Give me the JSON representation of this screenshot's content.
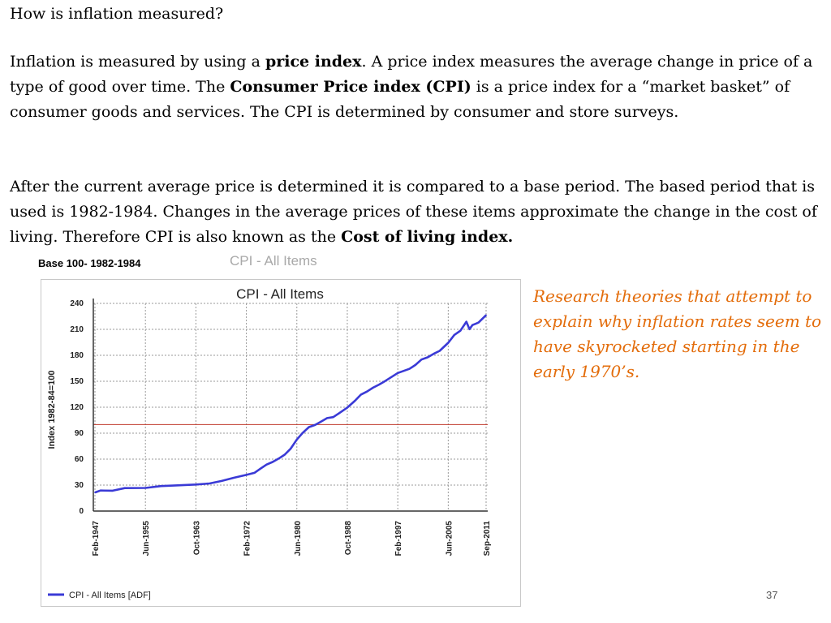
{
  "slide": {
    "title": "How is inflation measured?",
    "p1": {
      "t1": "Inflation is measured by using a ",
      "b1": "price index",
      "t2": ".  A price index measures the average change in price of a type of good over time.  The ",
      "b2": "Consumer Price index (CPI)",
      "t3": " is a price index for a “market basket” of consumer goods and services.  The CPI is determined by consumer and store surveys."
    },
    "p2": {
      "t1": "After the current average price is determined it is compared to a base period.  The based period that is used is 1982-1984.  Changes in the average prices of these items approximate the change in the cost of living.  Therefore  CPI is also known as the ",
      "b1": "Cost of living index."
    },
    "note": "Research theories that attempt to explain why inflation rates seem to  have skyrocketed starting in the early 1970’s.",
    "base_label": "Base 100- 1982-1984",
    "ghost_title": "CPI - All Items",
    "page_number": "37"
  },
  "colors": {
    "line": "#3a3ad6",
    "reference": "#c0392b",
    "note": "#e36c0a"
  },
  "chart_data": {
    "type": "line",
    "title": "CPI - All Items",
    "ylabel": "Index 1982-84=100",
    "xlabel": "",
    "ylim": [
      0,
      240
    ],
    "yticks": [
      0,
      30,
      60,
      90,
      120,
      150,
      180,
      210,
      240
    ],
    "xticks": [
      "Feb-1947",
      "Jun-1955",
      "Oct-1963",
      "Feb-1972",
      "Jun-1980",
      "Oct-1988",
      "Feb-1997",
      "Jun-2005",
      "Sep-2011"
    ],
    "grid": true,
    "legend": "bottom-left",
    "reference_line": 100,
    "series": [
      {
        "name": "CPI - All Items [ADF]",
        "x": [
          "1947-02",
          "1948-01",
          "1950-01",
          "1952-01",
          "1955-06",
          "1958-01",
          "1960-01",
          "1963-10",
          "1966-01",
          "1968-01",
          "1970-01",
          "1972-02",
          "1973-06",
          "1974-06",
          "1975-06",
          "1976-06",
          "1977-06",
          "1978-06",
          "1979-06",
          "1980-06",
          "1981-06",
          "1982-06",
          "1983-06",
          "1984-06",
          "1985-06",
          "1986-06",
          "1987-06",
          "1988-10",
          "1990-01",
          "1991-01",
          "1992-01",
          "1993-01",
          "1994-01",
          "1995-01",
          "1997-02",
          "1999-01",
          "2000-01",
          "2001-01",
          "2002-01",
          "2003-01",
          "2004-01",
          "2005-06",
          "2006-06",
          "2007-06",
          "2008-06",
          "2008-12",
          "2009-06",
          "2010-01",
          "2010-06",
          "2011-09"
        ],
        "y": [
          21.5,
          23.7,
          23.5,
          26.5,
          26.7,
          28.9,
          29.4,
          30.7,
          31.9,
          34.8,
          38.4,
          41.8,
          44.2,
          49.0,
          53.7,
          56.7,
          60.7,
          65.2,
          72.3,
          82.7,
          90.6,
          97.0,
          99.5,
          103.4,
          107.4,
          108.6,
          113.2,
          119.6,
          127.4,
          134.6,
          138.1,
          142.6,
          146.2,
          150.3,
          159.6,
          164.3,
          168.8,
          175.1,
          177.7,
          181.7,
          185.2,
          194.5,
          203.5,
          208.4,
          218.8,
          210.2,
          215.0,
          216.7,
          217.9,
          226.5
        ]
      }
    ]
  }
}
